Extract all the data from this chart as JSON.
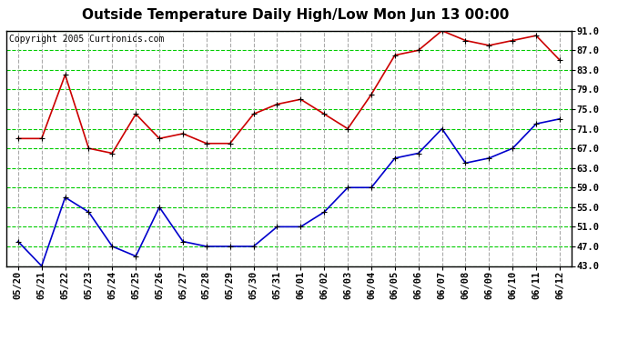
{
  "title": "Outside Temperature Daily High/Low Mon Jun 13 00:00",
  "copyright": "Copyright 2005 Curtronics.com",
  "labels": [
    "05/20",
    "05/21",
    "05/22",
    "05/23",
    "05/24",
    "05/25",
    "05/26",
    "05/27",
    "05/28",
    "05/29",
    "05/30",
    "05/31",
    "06/01",
    "06/02",
    "06/03",
    "06/04",
    "06/05",
    "06/06",
    "06/07",
    "06/08",
    "06/09",
    "06/10",
    "06/11",
    "06/12"
  ],
  "high": [
    69,
    69,
    82,
    67,
    66,
    74,
    69,
    70,
    68,
    68,
    74,
    76,
    77,
    74,
    71,
    78,
    86,
    87,
    91,
    89,
    88,
    89,
    90,
    85
  ],
  "low": [
    48,
    43,
    57,
    54,
    47,
    45,
    55,
    48,
    47,
    47,
    47,
    51,
    51,
    54,
    59,
    59,
    65,
    66,
    71,
    64,
    65,
    67,
    72,
    73
  ],
  "high_color": "#cc0000",
  "low_color": "#0000cc",
  "bg_color": "#ffffff",
  "plot_bg_color": "#ffffff",
  "h_grid_color": "#00cc00",
  "v_grid_color": "#aaaaaa",
  "grid_style": "--",
  "ymin": 43.0,
  "ymax": 91.0,
  "ytick_labels": [
    43.0,
    47.0,
    51.0,
    55.0,
    59.0,
    63.0,
    67.0,
    71.0,
    75.0,
    79.0,
    83.0,
    87.0,
    91.0
  ],
  "title_fontsize": 11,
  "label_fontsize": 7.5,
  "copyright_fontsize": 7
}
